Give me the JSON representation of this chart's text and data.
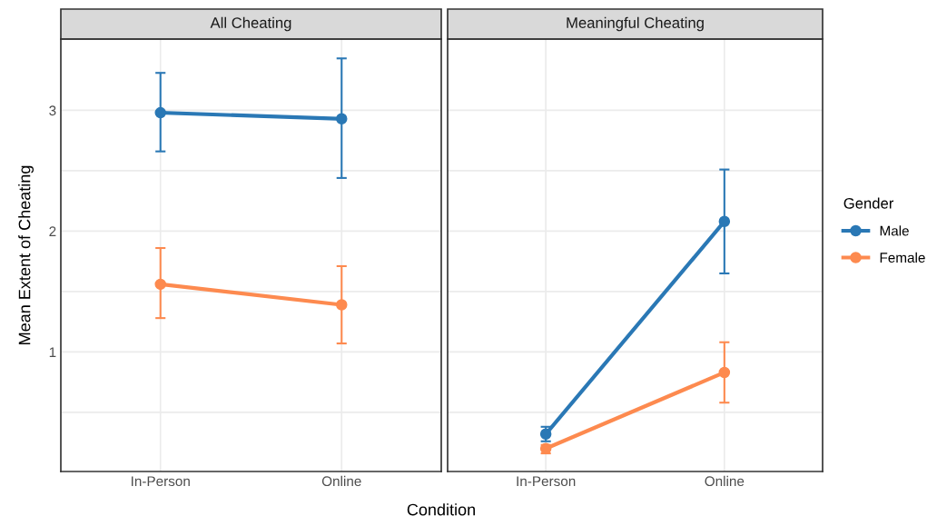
{
  "chart_data": [
    {
      "type": "line",
      "title": "All Cheating",
      "legend_title": "Gender",
      "legend": "right",
      "ylabel": "Mean Extent of Cheating",
      "categories": [
        "In-Person",
        "Online"
      ],
      "ylim": [
        0.01,
        3.59
      ],
      "yticks": [
        {
          "value": 0.5,
          "label": null
        },
        1,
        {
          "value": 1.5,
          "label": null
        },
        2,
        {
          "value": 2.5,
          "label": null
        },
        3
      ],
      "grid": true,
      "marker": "circle",
      "line_style": "solid",
      "series": [
        {
          "name": "Male",
          "color": "#2a78b5",
          "values": [
            2.98,
            2.93
          ],
          "errors": [
            [
              2.66,
              3.31
            ],
            [
              2.44,
              3.43
            ]
          ]
        },
        {
          "name": "Female",
          "color": "#fd8a4f",
          "values": [
            1.56,
            1.39
          ],
          "errors": [
            [
              1.28,
              1.86
            ],
            [
              1.07,
              1.71
            ]
          ]
        }
      ]
    },
    {
      "type": "line",
      "title": "Meaningful Cheating",
      "xlabel": "Condition",
      "tick_labels": "x",
      "categories": [
        "In-Person",
        "Online"
      ],
      "ylim": [
        0.01,
        3.59
      ],
      "yticks": [
        {
          "value": 0.5,
          "label": null
        },
        1,
        {
          "value": 1.5,
          "label": null
        },
        2,
        {
          "value": 2.5,
          "label": null
        },
        3
      ],
      "grid": true,
      "marker": "circle",
      "line_style": "solid",
      "series": [
        {
          "color": "#2a78b5",
          "values": [
            0.32,
            2.08
          ],
          "errors": [
            [
              0.26,
              0.38
            ],
            [
              1.65,
              2.51
            ]
          ]
        },
        {
          "color": "#fd8a4f",
          "values": [
            0.2,
            0.83
          ],
          "errors": [
            [
              0.16,
              0.23
            ],
            [
              0.58,
              1.08
            ]
          ]
        }
      ]
    }
  ]
}
